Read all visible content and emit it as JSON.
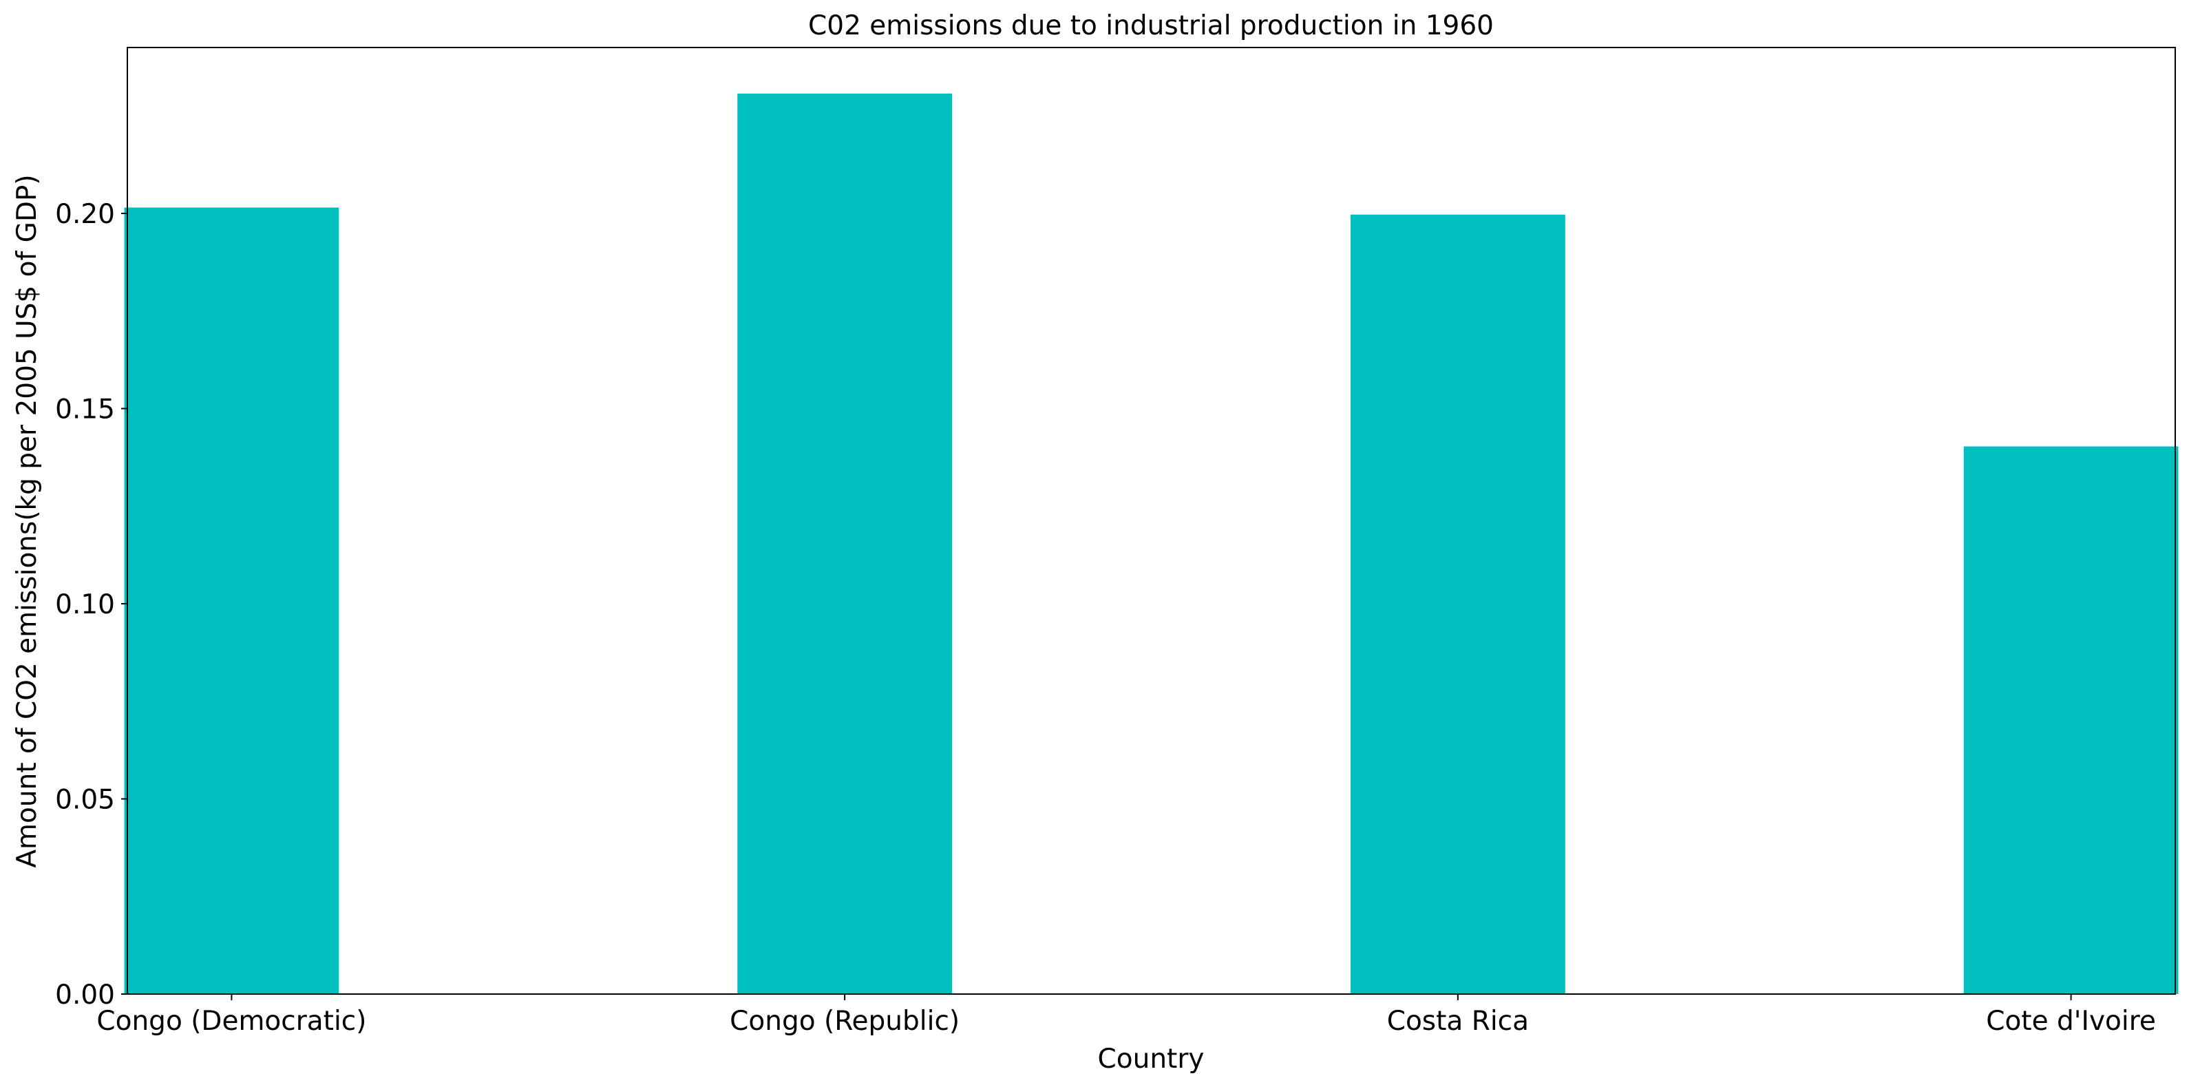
{
  "colors": {
    "bar": "#00BFBF",
    "axis": "#000000",
    "background": "#ffffff"
  },
  "chart_data": {
    "type": "bar",
    "title": "C02 emissions due to industrial production in 1960",
    "xlabel": "Country",
    "ylabel": "Amount of CO2 emissions(kg per 2005 US$ of GDP)",
    "categories": [
      "Congo (Democratic)",
      "Congo (Republic)",
      "Costa Rica",
      "Cote d'Ivoire"
    ],
    "values": [
      0.2015,
      0.2307,
      0.1997,
      0.1403
    ],
    "ylim": [
      0,
      0.2425
    ],
    "yticks": [
      0.0,
      0.05,
      0.1,
      0.15,
      0.2
    ],
    "ytick_labels": [
      "0.00",
      "0.05",
      "0.10",
      "0.15",
      "0.20"
    ],
    "grid": false,
    "legend": "none"
  }
}
